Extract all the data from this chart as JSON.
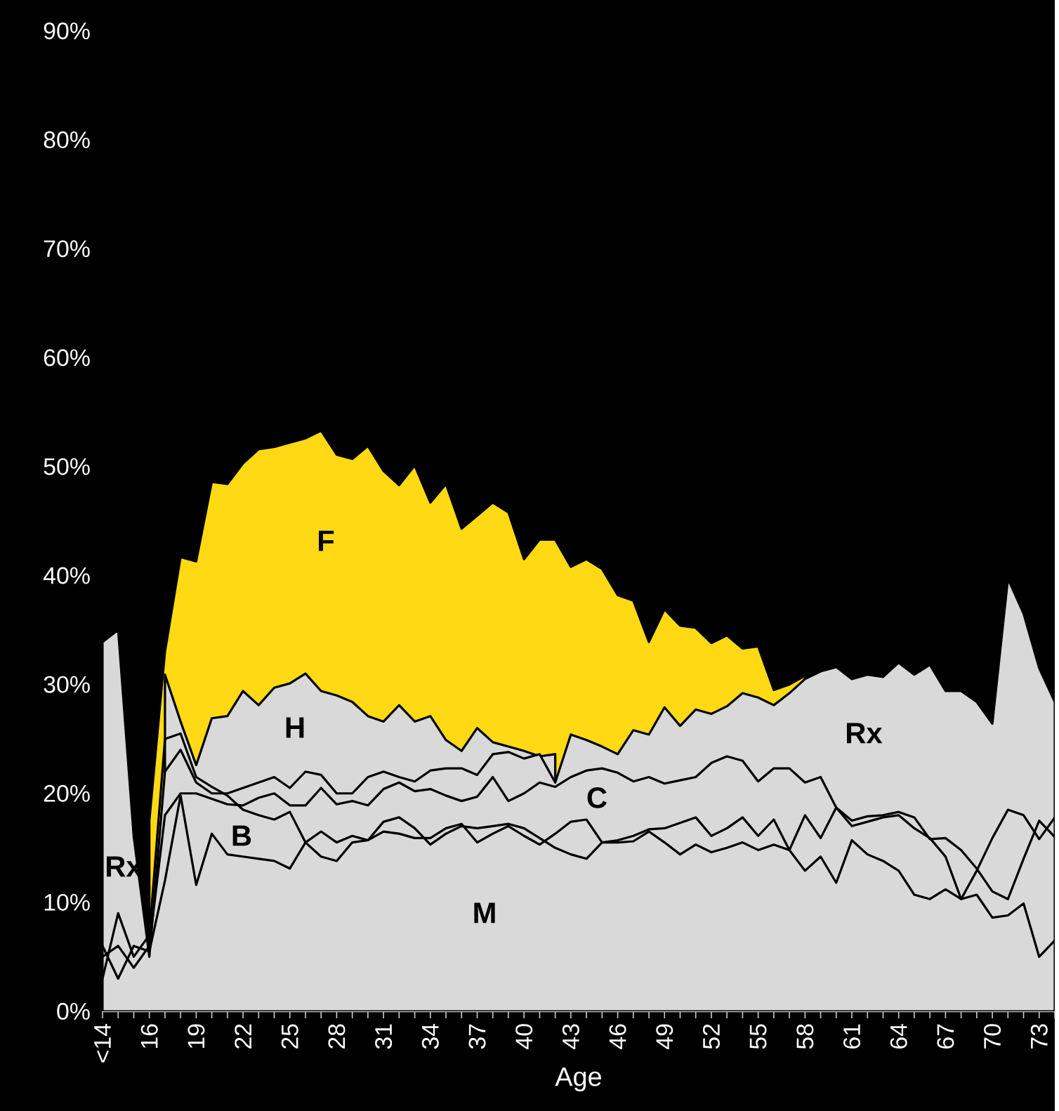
{
  "chart_data": {
    "type": "area",
    "xlabel": "Age",
    "categories": [
      "<14",
      null,
      null,
      "16",
      null,
      null,
      "19",
      null,
      null,
      "22",
      null,
      null,
      "25",
      null,
      null,
      "28",
      null,
      null,
      "31",
      null,
      null,
      "34",
      null,
      null,
      "37",
      null,
      null,
      "40",
      null,
      null,
      "43",
      null,
      null,
      "46",
      null,
      null,
      "49",
      null,
      null,
      "52",
      null,
      null,
      "55",
      null,
      null,
      "58",
      null,
      null,
      "61",
      null,
      null,
      "64",
      null,
      null,
      "67",
      null,
      null,
      "70",
      null,
      null,
      "73",
      null
    ],
    "ylim": [
      0,
      90
    ],
    "yticks": [
      {
        "value": 0,
        "label": "0%"
      },
      {
        "value": 10,
        "label": "10%"
      },
      {
        "value": 20,
        "label": "20%"
      },
      {
        "value": 30,
        "label": "30%"
      },
      {
        "value": 40,
        "label": "40%"
      },
      {
        "value": 50,
        "label": "50%"
      },
      {
        "value": 60,
        "label": "60%"
      },
      {
        "value": 70,
        "label": "70%"
      },
      {
        "value": 80,
        "label": "80%"
      },
      {
        "value": 90,
        "label": "90%"
      }
    ],
    "series": [
      {
        "color": "#ffda14",
        "values": [
          null,
          null,
          null,
          17.5,
          33,
          41.7,
          41.3,
          48.6,
          48.4,
          50.3,
          51.6,
          51.8,
          52.2,
          52.6,
          53.3,
          51.1,
          50.7,
          51.9,
          49.6,
          48.3,
          50.1,
          46.7,
          48.4,
          44.3,
          45.5,
          46.7,
          45.8,
          41.5,
          43.3,
          43.3,
          40.8,
          41.5,
          40.6,
          38.2,
          37.7,
          33.9,
          36.9,
          35.4,
          35.2,
          33.8,
          34.5,
          33.3,
          33.5,
          29.5,
          30.0,
          30.8,
          null,
          null,
          null,
          null,
          null,
          null,
          null,
          null,
          null,
          null,
          null,
          null,
          null,
          null,
          null,
          null
        ]
      },
      {
        "color": "#d9d9d9",
        "values": [
          null,
          null,
          null,
          null,
          30.9,
          26.6,
          22.6,
          26.9,
          27.1,
          29.4,
          28.1,
          29.7,
          30.1,
          31.0,
          29.4,
          29.0,
          28.4,
          27.1,
          26.6,
          28.1,
          26.6,
          27.1,
          24.9,
          23.9,
          26.0,
          24.7,
          24.3,
          23.9,
          23.4,
          23.6,
          null,
          null,
          null,
          null,
          null,
          null,
          null,
          null,
          null,
          null,
          null,
          null,
          null,
          null,
          null,
          null,
          null,
          null,
          null,
          null,
          null,
          null,
          null,
          null,
          null,
          null,
          null,
          null,
          null,
          null,
          null,
          null
        ]
      },
      {
        "color": "#d9d9d9",
        "values": [
          33.9,
          35.0,
          16,
          5,
          22,
          24,
          21,
          20.0,
          20.0,
          20.5,
          21.0,
          21.5,
          20.5,
          22.0,
          21.7,
          20.0,
          20.0,
          21.5,
          22.0,
          21.5,
          21.1,
          22.1,
          22.3,
          22.3,
          21.7,
          23.6,
          23.8,
          23.2,
          23.6,
          21.0,
          25.4,
          24.9,
          24.3,
          23.6,
          25.8,
          25.4,
          27.9,
          26.2,
          27.7,
          27.3,
          28.0,
          29.2,
          28.8,
          28.1,
          29.2,
          30.5,
          31.2,
          31.6,
          30.5,
          30.9,
          30.7,
          32.0,
          30.9,
          31.8,
          29.4,
          29.4,
          28.4,
          26.4,
          39.7,
          36.5,
          31.5,
          28.4
        ]
      },
      {
        "type": "line",
        "color": "#000000",
        "values": [
          5,
          6,
          4,
          6,
          18,
          20,
          20,
          19.5,
          19.0,
          18.9,
          19.6,
          20.0,
          18.9,
          18.9,
          20.5,
          19.0,
          19.3,
          18.9,
          20.4,
          21.0,
          20.2,
          20.4,
          19.8,
          19.3,
          19.7,
          21.5,
          19.3,
          20.0,
          21.0,
          20.6,
          21.5,
          22.1,
          22.3,
          21.9,
          21.1,
          21.5,
          20.9,
          21.2,
          21.5,
          22.8,
          23.4,
          23.0,
          21.1,
          22.3,
          22.3,
          21.0,
          21.5,
          18.7,
          17.5,
          17.9,
          18.0,
          18.3,
          17.8,
          15.8,
          15.9,
          14.8,
          13.1,
          11.0,
          10.3,
          14.0,
          17.5,
          16.0
        ]
      },
      {
        "type": "line",
        "color": "#000000",
        "values": [
          3,
          9,
          5,
          7,
          25,
          25.5,
          21.5,
          20.6,
          19.8,
          18.5,
          18.0,
          17.6,
          18.3,
          15.5,
          14.2,
          13.8,
          15.5,
          15.7,
          16.5,
          16.3,
          15.9,
          15.9,
          16.8,
          17.2,
          15.5,
          16.3,
          17.0,
          16.1,
          15.3,
          16.3,
          17.4,
          17.6,
          15.5,
          15.7,
          16.1,
          16.7,
          16.8,
          17.3,
          17.8,
          16.1,
          16.8,
          17.8,
          16.1,
          17.6,
          14.8,
          18.0,
          15.9,
          18.7,
          17.0,
          17.4,
          17.8,
          18.0,
          16.8,
          15.9,
          14.2,
          10.3,
          12.9,
          15.9,
          18.5,
          18.0,
          15.8,
          17.8
        ]
      },
      {
        "type": "line",
        "color": "#000000",
        "values": [
          6,
          3,
          6,
          5.5,
          12,
          19.8,
          11.6,
          16.3,
          14.4,
          14.2,
          14.0,
          13.8,
          13.1,
          15.5,
          16.5,
          15.5,
          16.1,
          15.7,
          17.4,
          17.8,
          16.8,
          15.3,
          16.3,
          17.0,
          16.8,
          17.0,
          17.2,
          16.8,
          15.9,
          15.0,
          14.4,
          14.0,
          15.5,
          15.5,
          15.6,
          16.5,
          15.5,
          14.4,
          15.3,
          14.6,
          15.0,
          15.5,
          14.8,
          15.3,
          14.8,
          12.9,
          14.2,
          11.8,
          15.7,
          14.4,
          13.8,
          12.9,
          10.7,
          10.3,
          11.2,
          10.3,
          10.7,
          8.6,
          8.8,
          9.9,
          5.0,
          6.5
        ]
      }
    ],
    "annotations": [
      "F",
      "H",
      "B",
      "C",
      "M",
      "Rx",
      "Rx"
    ]
  }
}
